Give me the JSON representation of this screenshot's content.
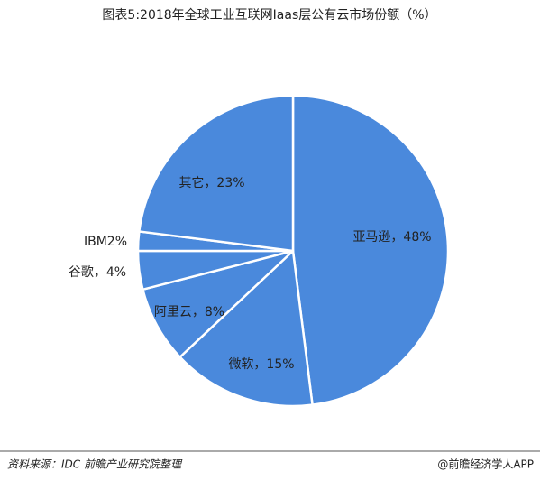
{
  "chart_data": {
    "type": "pie",
    "title": "图表5:2018年全球工业互联网Iaas层公有云市场份额（%）",
    "values": [
      48,
      15,
      8,
      4,
      2,
      23
    ],
    "value_labels": [
      "亚马逊，48%",
      "微软，15%",
      "阿里云，8%",
      "谷歌，4%",
      "IBM2%",
      "其它，23%"
    ],
    "color": "#4a89dc",
    "source": "资料来源：IDC 前瞻产业研究院整理",
    "credit": "@前瞻经济学人APP"
  }
}
